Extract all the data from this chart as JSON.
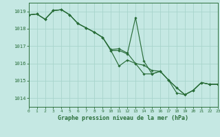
{
  "title": "Graphe pression niveau de la mer (hPa)",
  "bg_color": "#c5e8e3",
  "grid_color": "#a8d4cc",
  "line_color": "#2a6e3a",
  "xlim": [
    0,
    23
  ],
  "ylim": [
    1013.5,
    1019.5
  ],
  "yticks": [
    1014,
    1015,
    1016,
    1017,
    1018,
    1019
  ],
  "xticks": [
    0,
    1,
    2,
    3,
    4,
    5,
    6,
    7,
    8,
    9,
    10,
    11,
    12,
    13,
    14,
    15,
    16,
    17,
    18,
    19,
    20,
    21,
    22,
    23
  ],
  "series1": [
    1018.8,
    1018.85,
    1018.55,
    1019.05,
    1019.1,
    1018.8,
    1018.3,
    1018.05,
    1017.8,
    1017.5,
    1016.8,
    1016.85,
    1016.6,
    1016.0,
    1015.9,
    1015.6,
    1015.55,
    1015.05,
    1014.3,
    1014.2,
    1014.45,
    1014.9,
    1014.8,
    1014.8
  ],
  "series2": [
    1018.8,
    1018.85,
    1018.55,
    1019.05,
    1019.1,
    1018.8,
    1018.3,
    1018.05,
    1017.8,
    1017.5,
    1016.75,
    1016.75,
    1016.55,
    1018.65,
    1016.15,
    1015.4,
    1015.55,
    1015.05,
    1014.6,
    1014.2,
    1014.45,
    1014.9,
    1014.8,
    1014.8
  ],
  "series3": [
    1018.8,
    1018.85,
    1018.55,
    1019.05,
    1019.1,
    1018.8,
    1018.3,
    1018.05,
    1017.8,
    1017.5,
    1016.75,
    1015.85,
    1016.2,
    1016.0,
    1015.4,
    1015.4,
    1015.55,
    1015.05,
    1014.6,
    1014.2,
    1014.45,
    1014.9,
    1014.8,
    1014.8
  ],
  "figw": 3.2,
  "figh": 2.0,
  "dpi": 100
}
